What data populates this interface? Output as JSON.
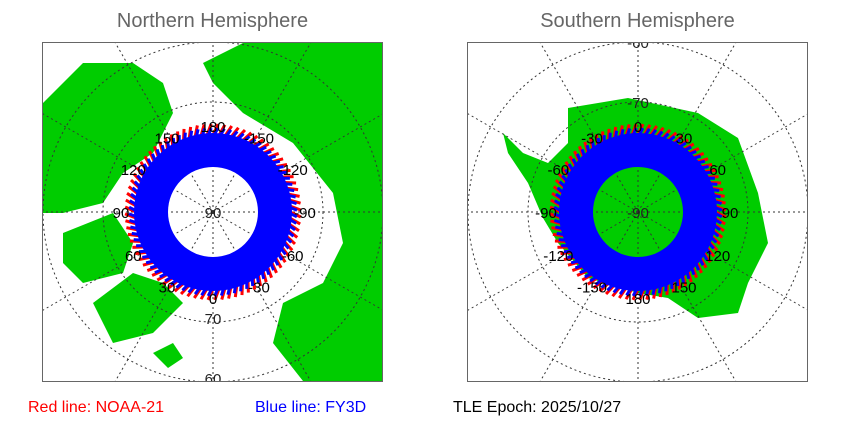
{
  "north": {
    "title": "Northern Hemisphere",
    "lon_labels": [
      "180",
      "150",
      "120",
      "90",
      "60",
      "30",
      "0",
      "-30",
      "-60",
      "-90",
      "-120",
      "-150"
    ],
    "lat_labels": [
      "90",
      "70",
      "60"
    ]
  },
  "south": {
    "title": "Southern Hemisphere",
    "lon_labels": [
      "0",
      "30",
      "60",
      "90",
      "120",
      "150",
      "180",
      "-150",
      "-120",
      "-90",
      "-60",
      "-30"
    ],
    "lat_labels": [
      "-90",
      "-70",
      "-60"
    ]
  },
  "legend": {
    "red": "Red line: NOAA-21",
    "blue": "Blue line: FY3D",
    "epoch": "TLE Epoch: 2025/10/27"
  },
  "colors": {
    "land": "#00cc00",
    "red": "#ff0000",
    "blue": "#0000ff",
    "grid": "#333333"
  }
}
